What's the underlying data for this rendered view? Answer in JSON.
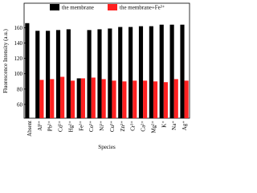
{
  "chart_data": {
    "type": "bar",
    "y_label": "Fluorescence Intensity (a.u.)",
    "x_label": "Species",
    "categories": [
      "Absent",
      "Al³⁺",
      "Pb²⁺",
      "Cd²⁺",
      "Hg²⁺",
      "Fe³⁺",
      "Co²⁺",
      "Ni²⁺",
      "Cu²⁺",
      "Zn²⁺",
      "Cr³⁺",
      "Ca²⁺",
      "Mg²⁺",
      "K⁺",
      "Na⁺",
      "Ag⁺"
    ],
    "series": [
      {
        "name": "the membrane",
        "color": "#000000",
        "values": [
          166,
          156,
          156,
          157,
          158,
          94,
          157,
          158,
          159,
          161,
          161,
          162,
          162,
          164,
          164,
          164
        ]
      },
      {
        "name": "the membrane+Fe³⁺",
        "color": "#ff2020",
        "values": [
          null,
          92,
          93,
          96,
          91,
          94,
          95,
          93,
          91,
          90,
          91,
          91,
          90,
          89,
          93,
          91
        ]
      }
    ],
    "ylim": [
      42,
      192
    ],
    "yticks": [
      60,
      80,
      100,
      120,
      140,
      160
    ],
    "legend": "top-left"
  }
}
